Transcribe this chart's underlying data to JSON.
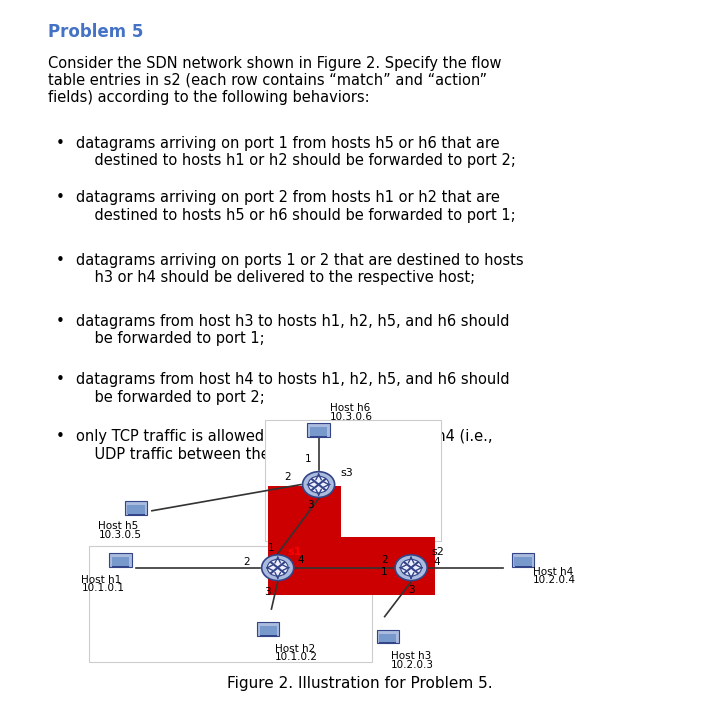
{
  "title": "Problem 5",
  "title_color": "#4472C4",
  "body_text": "Consider the SDN network shown in Figure 2. Specify the flow\ntable entries in s2 (each row contains “match” and “action”\nfields) according to the following behaviors:",
  "bullets": [
    "datagrams arriving on port 1 from hosts h5 or h6 that are\n    destined to hosts h1 or h2 should be forwarded to port 2;",
    "datagrams arriving on port 2 from hosts h1 or h2 that are\n    destined to hosts h5 or h6 should be forwarded to port 1;",
    "datagrams arriving on ports 1 or 2 that are destined to hosts\n    h3 or h4 should be delivered to the respective host;",
    "datagrams from host h3 to hosts h1, h2, h5, and h6 should\n    be forwarded to port 1;",
    "datagrams from host h4 to hosts h1, h2, h5, and h6 should\n    be forwarded to port 2;",
    "only TCP traffic is allowed between hosts h3 and h4 (i.e.,\n    UDP traffic between them is blocked)."
  ],
  "figure_caption": "Figure 2. Illustration for Problem 5.",
  "bg_color": "#ffffff",
  "text_color": "#000000",
  "diagram": {
    "red_color": "#cc0000",
    "white_box_color": "#ffffff",
    "box_stroke": "#cccccc",
    "switch_color": "#4466aa",
    "host_color": "#5577aa",
    "label_color": "#000000"
  }
}
